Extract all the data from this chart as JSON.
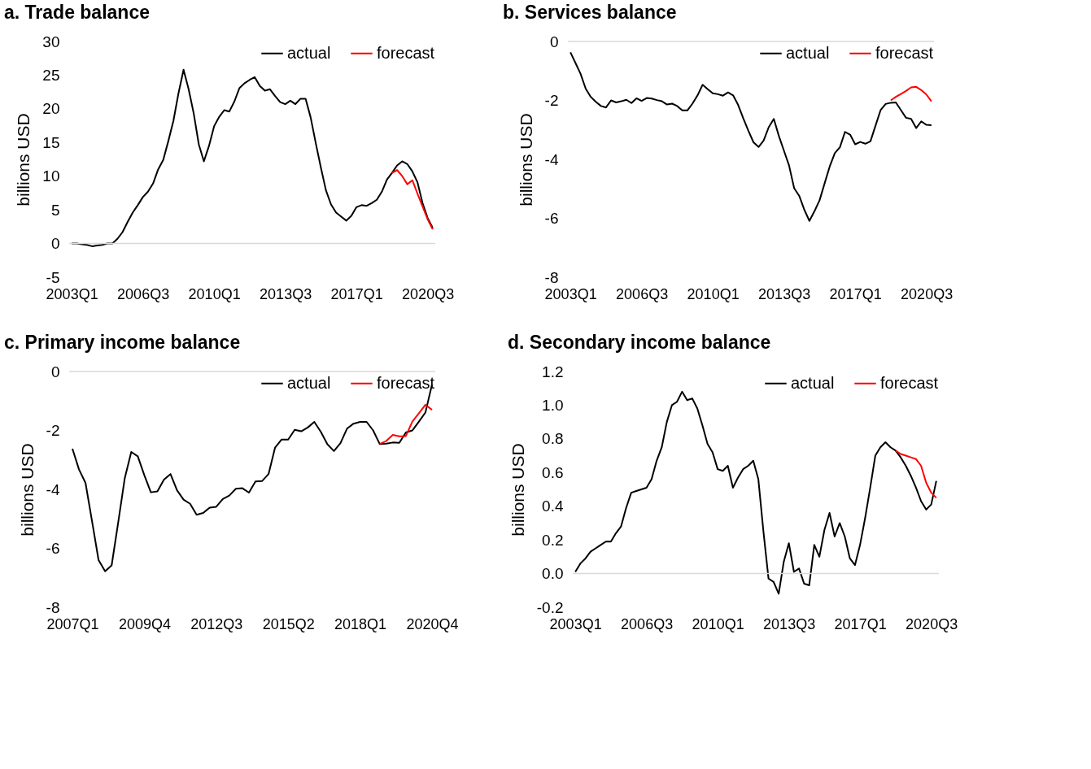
{
  "chart_data": [
    {
      "type": "line",
      "title": "a. Trade balance",
      "ylabel": "billions USD",
      "categories": [
        "2003Q1",
        null,
        null,
        null,
        null,
        null,
        null,
        null,
        null,
        null,
        null,
        null,
        null,
        null,
        "2006Q3",
        null,
        null,
        null,
        null,
        null,
        null,
        null,
        null,
        null,
        null,
        null,
        null,
        null,
        "2010Q1",
        null,
        null,
        null,
        null,
        null,
        null,
        null,
        null,
        null,
        null,
        null,
        null,
        null,
        "2013Q3",
        null,
        null,
        null,
        null,
        null,
        null,
        null,
        null,
        null,
        null,
        null,
        null,
        null,
        "2017Q1",
        null,
        null,
        null,
        null,
        null,
        null,
        null,
        null,
        null,
        null,
        null,
        null,
        null,
        "2020Q3",
        null
      ],
      "series": [
        {
          "name": "actual",
          "color": "#000000",
          "values": [
            0.0,
            0.0,
            -0.1,
            -0.2,
            -0.4,
            -0.3,
            -0.2,
            0.0,
            0.0,
            0.7,
            1.7,
            3.2,
            4.6,
            5.7,
            6.9,
            7.7,
            8.9,
            11.0,
            12.4,
            15.2,
            18.2,
            22.3,
            25.8,
            22.9,
            19.3,
            14.7,
            12.2,
            14.5,
            17.4,
            18.8,
            19.8,
            19.6,
            21.1,
            23.1,
            23.8,
            24.3,
            24.7,
            23.4,
            22.7,
            22.9,
            21.9,
            21.0,
            20.7,
            21.2,
            20.7,
            21.5,
            21.5,
            18.7,
            14.9,
            11.3,
            7.9,
            5.8,
            4.6,
            4.0,
            3.4,
            4.1,
            5.4,
            5.7,
            5.6,
            6.0,
            6.5,
            7.7,
            9.5,
            10.5,
            11.6,
            12.2,
            11.8,
            10.7,
            9.1,
            6.0,
            3.8,
            2.3
          ]
        },
        {
          "name": "forecast",
          "color": "#ff0000",
          "values": [
            null,
            null,
            null,
            null,
            null,
            null,
            null,
            null,
            null,
            null,
            null,
            null,
            null,
            null,
            null,
            null,
            null,
            null,
            null,
            null,
            null,
            null,
            null,
            null,
            null,
            null,
            null,
            null,
            null,
            null,
            null,
            null,
            null,
            null,
            null,
            null,
            null,
            null,
            null,
            null,
            null,
            null,
            null,
            null,
            null,
            null,
            null,
            null,
            null,
            null,
            null,
            null,
            null,
            null,
            null,
            null,
            null,
            null,
            null,
            null,
            null,
            null,
            null,
            10.5,
            10.9,
            10.0,
            8.8,
            9.4,
            7.4,
            5.5,
            3.6,
            2.1
          ]
        }
      ],
      "ylim": [
        -5,
        30
      ],
      "yticks": [
        -5,
        0,
        5,
        10,
        15,
        20,
        25,
        30
      ],
      "grid": false,
      "legend": "top right",
      "ref_lines": [
        {
          "axis": "y",
          "value": 0,
          "color": "#d9d9d9"
        }
      ]
    },
    {
      "type": "line",
      "title": "b. Services balance",
      "ylabel": "billions USD",
      "categories": [
        "2003Q1",
        null,
        null,
        null,
        null,
        null,
        null,
        null,
        null,
        null,
        null,
        null,
        null,
        null,
        "2006Q3",
        null,
        null,
        null,
        null,
        null,
        null,
        null,
        null,
        null,
        null,
        null,
        null,
        null,
        "2010Q1",
        null,
        null,
        null,
        null,
        null,
        null,
        null,
        null,
        null,
        null,
        null,
        null,
        null,
        "2013Q3",
        null,
        null,
        null,
        null,
        null,
        null,
        null,
        null,
        null,
        null,
        null,
        null,
        null,
        "2017Q1",
        null,
        null,
        null,
        null,
        null,
        null,
        null,
        null,
        null,
        null,
        null,
        null,
        null,
        "2020Q3",
        null
      ],
      "series": [
        {
          "name": "actual",
          "color": "#000000",
          "values": [
            -0.37,
            -0.73,
            -1.1,
            -1.6,
            -1.88,
            -2.05,
            -2.19,
            -2.24,
            -2.0,
            -2.07,
            -2.03,
            -1.98,
            -2.09,
            -1.93,
            -2.02,
            -1.92,
            -1.94,
            -1.99,
            -2.03,
            -2.14,
            -2.11,
            -2.19,
            -2.34,
            -2.34,
            -2.11,
            -1.83,
            -1.47,
            -1.62,
            -1.76,
            -1.79,
            -1.84,
            -1.73,
            -1.83,
            -2.16,
            -2.61,
            -3.03,
            -3.42,
            -3.58,
            -3.36,
            -2.91,
            -2.63,
            -3.21,
            -3.71,
            -4.21,
            -4.98,
            -5.24,
            -5.71,
            -6.09,
            -5.76,
            -5.39,
            -4.81,
            -4.24,
            -3.79,
            -3.59,
            -3.07,
            -3.16,
            -3.49,
            -3.41,
            -3.47,
            -3.39,
            -2.86,
            -2.33,
            -2.12,
            -2.08,
            -2.07,
            -2.33,
            -2.59,
            -2.63,
            -2.94,
            -2.71,
            -2.83,
            -2.84
          ]
        },
        {
          "name": "forecast",
          "color": "#ff0000",
          "values": [
            null,
            null,
            null,
            null,
            null,
            null,
            null,
            null,
            null,
            null,
            null,
            null,
            null,
            null,
            null,
            null,
            null,
            null,
            null,
            null,
            null,
            null,
            null,
            null,
            null,
            null,
            null,
            null,
            null,
            null,
            null,
            null,
            null,
            null,
            null,
            null,
            null,
            null,
            null,
            null,
            null,
            null,
            null,
            null,
            null,
            null,
            null,
            null,
            null,
            null,
            null,
            null,
            null,
            null,
            null,
            null,
            null,
            null,
            null,
            null,
            null,
            null,
            null,
            -2.0,
            -1.88,
            -1.78,
            -1.68,
            -1.56,
            -1.54,
            -1.65,
            -1.8,
            -2.03
          ]
        }
      ],
      "ylim": [
        -8,
        0
      ],
      "yticks": [
        -8,
        -6,
        -4,
        -2,
        0
      ],
      "grid": false,
      "legend": "top right",
      "ref_lines": [
        {
          "axis": "y",
          "value": 0,
          "color": "#d9d9d9"
        }
      ]
    },
    {
      "type": "line",
      "title": "c. Primary income balance",
      "ylabel": "billions USD",
      "categories": [
        "2007Q1",
        null,
        null,
        null,
        null,
        null,
        null,
        null,
        null,
        null,
        null,
        "2009Q4",
        null,
        null,
        null,
        null,
        null,
        null,
        null,
        null,
        null,
        null,
        "2012Q3",
        null,
        null,
        null,
        null,
        null,
        null,
        null,
        null,
        null,
        null,
        "2015Q2",
        null,
        null,
        null,
        null,
        null,
        null,
        null,
        null,
        null,
        null,
        "2018Q1",
        null,
        null,
        null,
        null,
        null,
        null,
        null,
        null,
        null,
        null,
        "2020Q4"
      ],
      "series": [
        {
          "name": "actual",
          "color": "#000000",
          "values": [
            -2.62,
            -3.32,
            -3.78,
            -5.08,
            -6.4,
            -6.78,
            -6.58,
            -5.13,
            -3.63,
            -2.73,
            -2.88,
            -3.52,
            -4.1,
            -4.07,
            -3.67,
            -3.48,
            -4.03,
            -4.35,
            -4.49,
            -4.86,
            -4.8,
            -4.62,
            -4.59,
            -4.33,
            -4.21,
            -3.98,
            -3.96,
            -4.11,
            -3.73,
            -3.72,
            -3.48,
            -2.58,
            -2.31,
            -2.31,
            -1.98,
            -2.03,
            -1.9,
            -1.71,
            -2.05,
            -2.47,
            -2.7,
            -2.43,
            -1.94,
            -1.77,
            -1.71,
            -1.71,
            -2.0,
            -2.46,
            -2.45,
            -2.41,
            -2.42,
            -2.07,
            -2.0,
            -1.7,
            -1.39,
            -0.44
          ]
        },
        {
          "name": "forecast",
          "color": "#ff0000",
          "values": [
            null,
            null,
            null,
            null,
            null,
            null,
            null,
            null,
            null,
            null,
            null,
            null,
            null,
            null,
            null,
            null,
            null,
            null,
            null,
            null,
            null,
            null,
            null,
            null,
            null,
            null,
            null,
            null,
            null,
            null,
            null,
            null,
            null,
            null,
            null,
            null,
            null,
            null,
            null,
            null,
            null,
            null,
            null,
            null,
            null,
            null,
            null,
            -2.46,
            -2.36,
            -2.15,
            -2.2,
            -2.19,
            -1.7,
            -1.42,
            -1.13,
            -1.3
          ]
        }
      ],
      "ylim": [
        -8,
        0
      ],
      "yticks": [
        -8,
        -6,
        -4,
        -2,
        0
      ],
      "grid": false,
      "legend": "top right",
      "ref_lines": [
        {
          "axis": "y",
          "value": 0,
          "color": "#d9d9d9"
        }
      ]
    },
    {
      "type": "line",
      "title": "d. Secondary income balance",
      "ylabel": "billions USD",
      "categories": [
        "2003Q1",
        null,
        null,
        null,
        null,
        null,
        null,
        null,
        null,
        null,
        null,
        null,
        null,
        null,
        "2006Q3",
        null,
        null,
        null,
        null,
        null,
        null,
        null,
        null,
        null,
        null,
        null,
        null,
        null,
        "2010Q1",
        null,
        null,
        null,
        null,
        null,
        null,
        null,
        null,
        null,
        null,
        null,
        null,
        null,
        "2013Q3",
        null,
        null,
        null,
        null,
        null,
        null,
        null,
        null,
        null,
        null,
        null,
        null,
        null,
        "2017Q1",
        null,
        null,
        null,
        null,
        null,
        null,
        null,
        null,
        null,
        null,
        null,
        null,
        null,
        "2020Q3",
        null
      ],
      "series": [
        {
          "name": "actual",
          "color": "#000000",
          "values": [
            0.01,
            0.06,
            0.09,
            0.13,
            0.15,
            0.17,
            0.19,
            0.19,
            0.24,
            0.28,
            0.39,
            0.48,
            0.49,
            0.5,
            0.51,
            0.56,
            0.67,
            0.75,
            0.9,
            1.0,
            1.02,
            1.08,
            1.03,
            1.04,
            0.98,
            0.88,
            0.77,
            0.72,
            0.62,
            0.61,
            0.64,
            0.51,
            0.57,
            0.62,
            0.64,
            0.67,
            0.56,
            0.25,
            -0.03,
            -0.05,
            -0.12,
            0.07,
            0.18,
            0.01,
            0.03,
            -0.06,
            -0.07,
            0.17,
            0.1,
            0.26,
            0.36,
            0.22,
            0.3,
            0.22,
            0.09,
            0.05,
            0.17,
            0.33,
            0.51,
            0.7,
            0.75,
            0.78,
            0.75,
            0.73,
            0.69,
            0.64,
            0.58,
            0.51,
            0.43,
            0.38,
            0.41,
            0.55
          ]
        },
        {
          "name": "forecast",
          "color": "#ff0000",
          "values": [
            null,
            null,
            null,
            null,
            null,
            null,
            null,
            null,
            null,
            null,
            null,
            null,
            null,
            null,
            null,
            null,
            null,
            null,
            null,
            null,
            null,
            null,
            null,
            null,
            null,
            null,
            null,
            null,
            null,
            null,
            null,
            null,
            null,
            null,
            null,
            null,
            null,
            null,
            null,
            null,
            null,
            null,
            null,
            null,
            null,
            null,
            null,
            null,
            null,
            null,
            null,
            null,
            null,
            null,
            null,
            null,
            null,
            null,
            null,
            null,
            null,
            null,
            null,
            0.73,
            0.71,
            0.7,
            0.69,
            0.68,
            0.64,
            0.54,
            0.48,
            0.45
          ]
        }
      ],
      "ylim": [
        -0.2,
        1.2
      ],
      "yticks": [
        {
          "value": -0.2,
          "label": "-0.2"
        },
        {
          "value": 0,
          "label": "0.0"
        },
        {
          "value": 0.2,
          "label": "0.2"
        },
        {
          "value": 0.4,
          "label": "0.4"
        },
        {
          "value": 0.6,
          "label": "0.6"
        },
        {
          "value": 0.8,
          "label": "0.8"
        },
        {
          "value": 1.0,
          "label": "1.0"
        },
        {
          "value": 1.2,
          "label": "1.2"
        }
      ],
      "grid": false,
      "legend": "top right",
      "ref_lines": [
        {
          "axis": "y",
          "value": 0,
          "color": "#d9d9d9"
        }
      ]
    }
  ]
}
